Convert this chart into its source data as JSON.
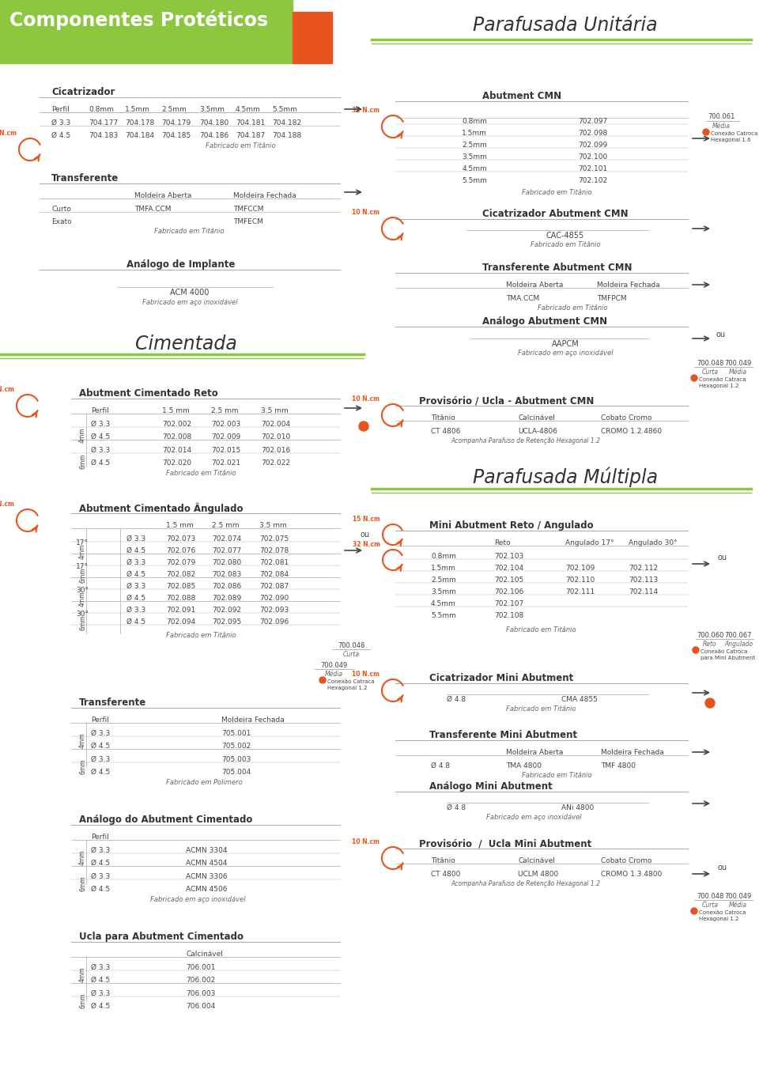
{
  "bg_color": "#f0f0eb",
  "green_header": "#8dc63f",
  "orange_accent": "#e8541e",
  "title_left": "Componentes Protéticos",
  "title_right_1": "Parafusada Unitária",
  "title_right_2": "Parafusada Múltipla",
  "title_center": "Cimentada"
}
